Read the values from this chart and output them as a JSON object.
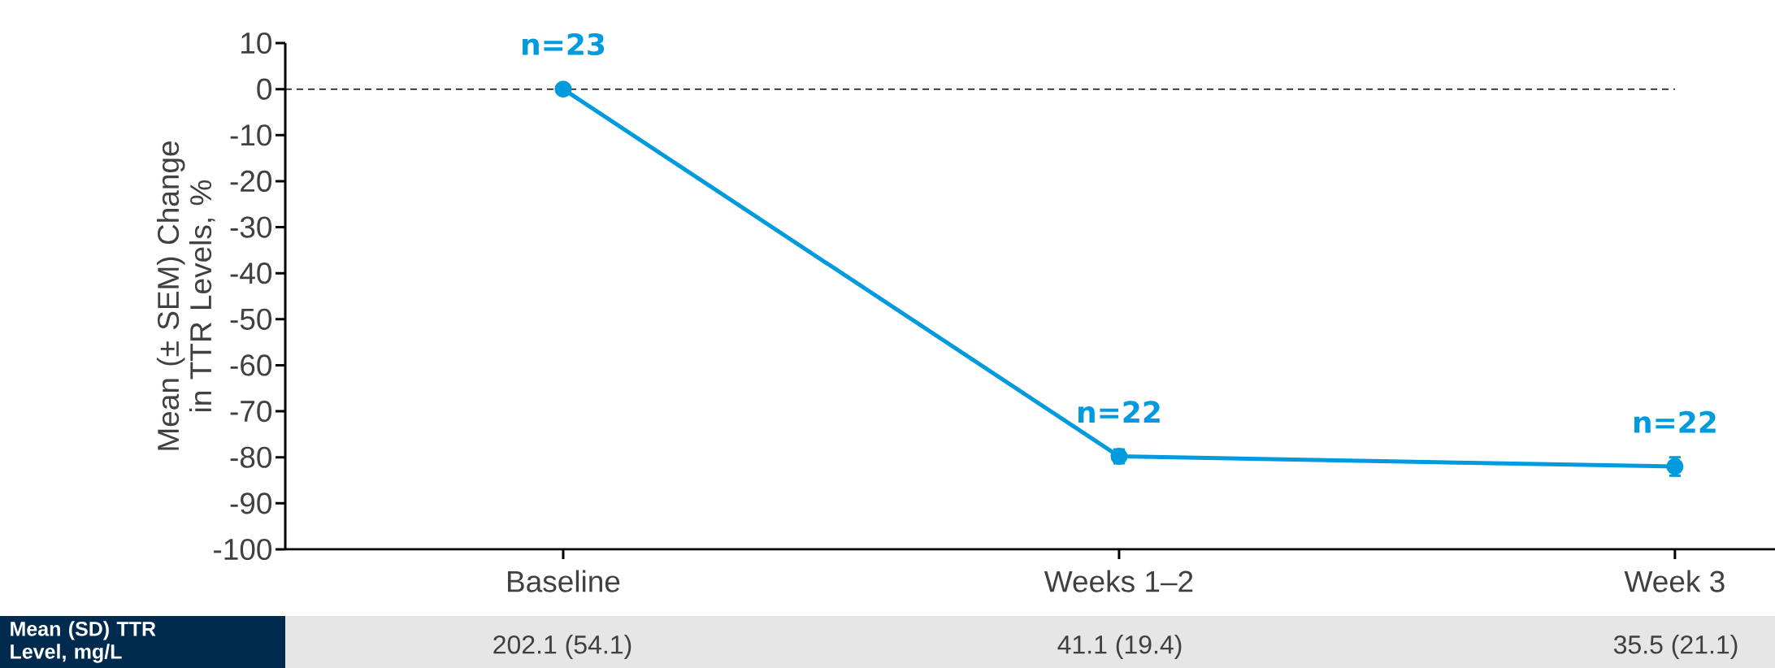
{
  "chart_data": {
    "type": "line",
    "ylabel": "Mean (± SEM) Change in TTR Levels, %",
    "categories": [
      "Baseline",
      "Weeks 1–2",
      "Week 3"
    ],
    "values": [
      0,
      -79.8,
      -82.0
    ],
    "errors": [
      null,
      1.5,
      2.0
    ],
    "color": "#009ade",
    "marker": "circle",
    "line_style": "solid",
    "ylim": [
      -100,
      10
    ],
    "yticks": [
      -100,
      -90,
      -80,
      -70,
      -60,
      -50,
      -40,
      -30,
      -20,
      -10,
      0,
      10
    ],
    "ref_lines": [
      {
        "axis": "y",
        "value": 0,
        "color": "#000000",
        "line_style": "dashed"
      }
    ],
    "annotations": [
      {
        "text": "n=23",
        "x": "Baseline",
        "y": 0
      },
      {
        "text": "n=22",
        "x": "Weeks 1–2",
        "y": -79.8
      },
      {
        "text": "n=22",
        "x": "Week 3",
        "y": -82.0
      },
      "Mean (SD) TTR Level, mg/L",
      "202.1 (54.1)",
      "41.1 (19.4)",
      "35.5 (21.1)"
    ]
  }
}
